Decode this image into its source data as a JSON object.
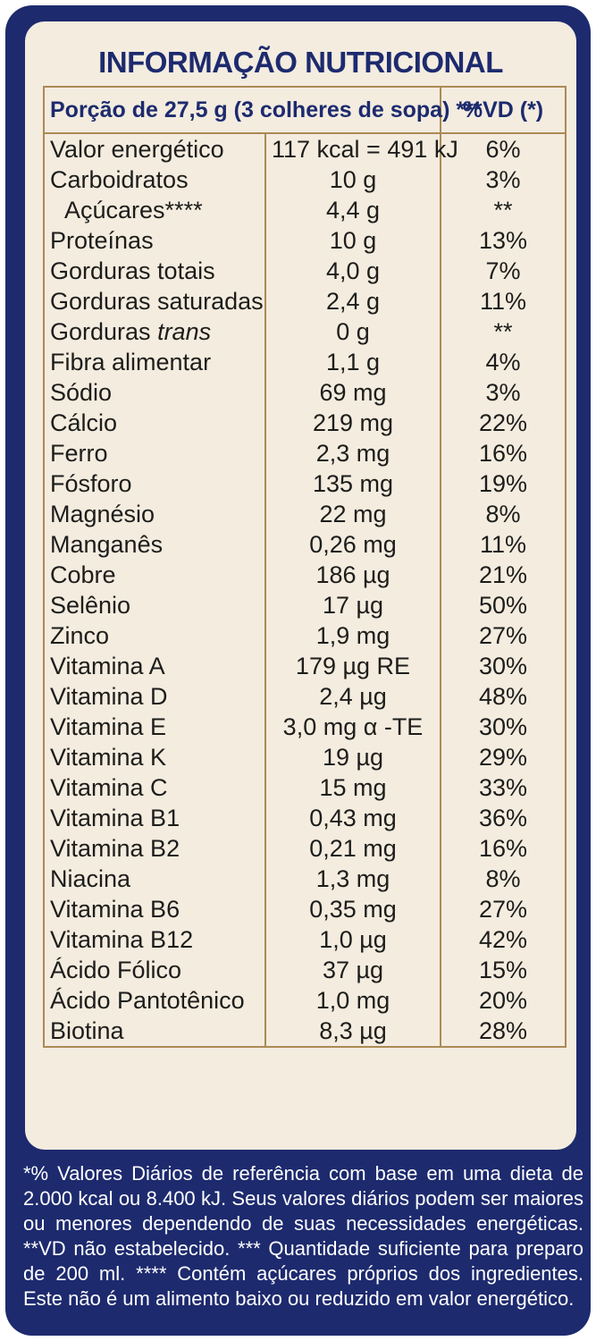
{
  "title": "INFORMAÇÃO NUTRICIONAL",
  "header": {
    "portion": "Porção de 27,5 g (3 colheres de sopa) ***",
    "vd": "%VD (*)"
  },
  "rows": [
    {
      "name": "Valor energético",
      "amount": "117 kcal = 491 kJ",
      "vd": "6%"
    },
    {
      "name": "Carboidratos",
      "amount": "10 g",
      "vd": "3%"
    },
    {
      "name": "Açúcares****",
      "amount": "4,4 g",
      "vd": "**"
    },
    {
      "name": "Proteínas",
      "amount": "10 g",
      "vd": "13%"
    },
    {
      "name": "Gorduras totais",
      "amount": "4,0 g",
      "vd": "7%"
    },
    {
      "name": "Gorduras saturadas",
      "amount": "2,4 g",
      "vd": "11%"
    },
    {
      "name": "Gorduras trans",
      "amount": "0 g",
      "vd": "**"
    },
    {
      "name": "Fibra alimentar",
      "amount": "1,1 g",
      "vd": "4%"
    },
    {
      "name": "Sódio",
      "amount": "69 mg",
      "vd": "3%"
    },
    {
      "name": "Cálcio",
      "amount": "219 mg",
      "vd": "22%"
    },
    {
      "name": "Ferro",
      "amount": "2,3 mg",
      "vd": "16%"
    },
    {
      "name": "Fósforo",
      "amount": "135 mg",
      "vd": "19%"
    },
    {
      "name": "Magnésio",
      "amount": "22 mg",
      "vd": "8%"
    },
    {
      "name": "Manganês",
      "amount": "0,26 mg",
      "vd": "11%"
    },
    {
      "name": "Cobre",
      "amount": "186 µg",
      "vd": "21%"
    },
    {
      "name": "Selênio",
      "amount": "17 µg",
      "vd": "50%"
    },
    {
      "name": "Zinco",
      "amount": "1,9 mg",
      "vd": "27%"
    },
    {
      "name": "Vitamina A",
      "amount": "179 µg RE",
      "vd": "30%"
    },
    {
      "name": "Vitamina D",
      "amount": "2,4 µg",
      "vd": "48%"
    },
    {
      "name": "Vitamina E",
      "amount": "3,0 mg α -TE",
      "vd": "30%"
    },
    {
      "name": "Vitamina K",
      "amount": "19 µg",
      "vd": "29%"
    },
    {
      "name": "Vitamina C",
      "amount": "15 mg",
      "vd": "33%"
    },
    {
      "name": "Vitamina B1",
      "amount": "0,43 mg",
      "vd": "36%"
    },
    {
      "name": "Vitamina B2",
      "amount": "0,21 mg",
      "vd": "16%"
    },
    {
      "name": "Niacina",
      "amount": "1,3 mg",
      "vd": "8%"
    },
    {
      "name": "Vitamina B6",
      "amount": "0,35 mg",
      "vd": "27%"
    },
    {
      "name": "Vitamina B12",
      "amount": "1,0 µg",
      "vd": "42%"
    },
    {
      "name": "Ácido Fólico",
      "amount": "37 µg",
      "vd": "15%"
    },
    {
      "name": "Ácido Pantotênico",
      "amount": "1,0 mg",
      "vd": "20%"
    },
    {
      "name": "Biotina",
      "amount": "8,3 µg",
      "vd": "28%"
    }
  ],
  "footer": "*% Valores Diários de referência com base em uma dieta de 2.000 kcal ou 8.400 kJ. Seus valores diários podem ser maiores ou menores dependendo de suas necessidades energéticas. **VD não estabelecido. *** Quantidade suficiente para preparo de 200 ml. **** Contém açúcares próprios dos ingredientes. Este não é um alimento baixo ou reduzido em valor energético.",
  "colors": {
    "navy": "#1d2a6e",
    "cream": "#f3ecdf",
    "gold_border": "#ab8a55"
  }
}
